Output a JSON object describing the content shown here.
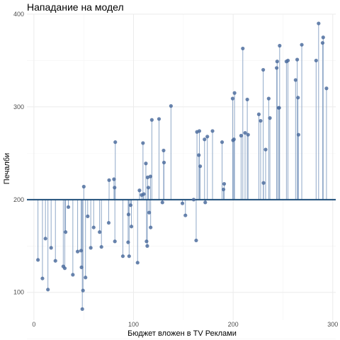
{
  "chart_data": {
    "type": "scatter",
    "title": "Нападание на модел",
    "xlabel": "Бюджет вложен в TV Реклами",
    "ylabel": "Печалби",
    "xlim": [
      -7,
      303
    ],
    "ylim": [
      70,
      400
    ],
    "xticks": [
      0,
      100,
      200,
      300
    ],
    "yticks": [
      100,
      200,
      300,
      400
    ],
    "xtick_labels": [
      "0",
      "100",
      "200",
      "300"
    ],
    "ytick_labels": [
      "100",
      "200",
      "300",
      "400"
    ],
    "baseline": 200,
    "grid": true,
    "colors": {
      "point": "#4f6f9f",
      "segment": "#8fa8c8",
      "baseline": "#1f4e79"
    },
    "series": [
      {
        "x": [
          4.1,
          8.6,
          11.6,
          14.1,
          17.3,
          21.6,
          29.5,
          31.0,
          31.8,
          34.6,
          39.1,
          43.9,
          47.4,
          47.8,
          48.6,
          49.3,
          50.1,
          51.8,
          54.0,
          57.1,
          60.0,
          66.0,
          67.8,
          75.1,
          75.5,
          80.4,
          81.0,
          81.3,
          81.7,
          89.3,
          94.6,
          95.0,
          95.6,
          97.1,
          97.9,
          104.1,
          106.0,
          108.2,
          109.5,
          110.3,
          112.4,
          113.1,
          113.8,
          114.2,
          114.9,
          115.7,
          117.0,
          117.2,
          118.4,
          125.6,
          129.0,
          130.2,
          130.6,
          137.6,
          149.1,
          152.1,
          160.4,
          162.9,
          163.7,
          165.6,
          166.1,
          166.9,
          171.3,
          172.0,
          174.1,
          179.3,
          188.9,
          190.3,
          191.0,
          199.5,
          199.9,
          200.8,
          201.4,
          208.0,
          209.7,
          212.0,
          214.2,
          215.0,
          225.8,
          227.6,
          230.2,
          230.5,
          232.6,
          235.7,
          236.9,
          243.7,
          244.2,
          245.7,
          246.2,
          246.7,
          253.5,
          255.0,
          262.7,
          264.3,
          265.1,
          265.6,
          268.9,
          283.3,
          285.8,
          289.8,
          290.4,
          293.7
        ],
        "y": [
          135,
          115,
          158,
          103,
          148,
          134,
          128,
          126,
          165,
          192,
          119,
          144,
          145,
          127,
          82,
          102,
          214,
          116,
          182,
          148,
          170,
          165,
          149,
          175,
          221,
          222,
          213,
          155,
          262,
          139,
          154,
          184,
          139,
          194,
          171,
          132,
          210,
          205,
          261,
          206,
          239,
          155,
          150,
          224,
          213,
          186,
          225,
          170,
          286,
          287,
          197,
          253,
          240,
          301,
          196,
          183,
          200,
          156,
          273,
          248,
          274,
          236,
          265,
          197,
          268,
          274,
          262,
          211,
          217,
          309,
          264,
          265,
          315,
          269,
          363,
          272,
          308,
          270,
          292,
          285,
          340,
          218,
          254,
          309,
          288,
          342,
          349,
          299,
          299,
          366,
          349,
          350,
          329,
          351,
          310,
          270,
          367,
          350,
          390,
          369,
          375,
          320
        ]
      }
    ]
  }
}
